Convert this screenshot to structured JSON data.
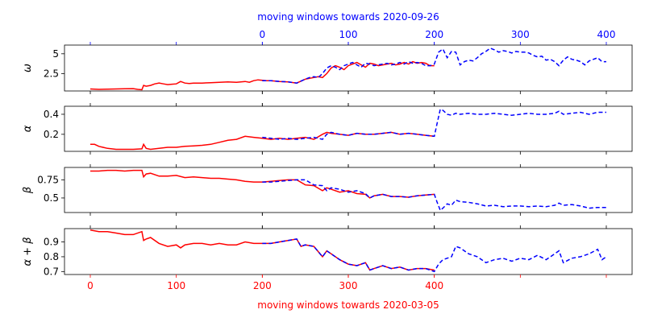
{
  "figure": {
    "top_axis_label": "moving windows towards 2020-09-26",
    "bottom_axis_label": "moving windows towards 2020-03-05",
    "top_axis_color": "#0000ff",
    "bottom_axis_color": "#ff0000"
  },
  "chart_data": {
    "type": "line",
    "shared_axes": {
      "bottom": {
        "label": "moving windows towards 2020-03-05",
        "range": [
          -30,
          630
        ],
        "ticks": [
          0,
          100,
          200,
          300,
          400
        ],
        "color": "#ff0000"
      },
      "top": {
        "label": "moving windows towards 2020-09-26",
        "range": [
          -230,
          430
        ],
        "ticks": [
          0,
          100,
          200,
          300,
          400
        ],
        "color": "#0000ff",
        "x_offset_vs_bottom": 200
      }
    },
    "panels": [
      {
        "id": "omega",
        "ylabel": "ω",
        "ylim": [
          0.3,
          6.1
        ],
        "yticks": [
          2.5,
          5.0
        ],
        "series": [
          {
            "axis": "bottom",
            "color": "#ff0000",
            "style": "solid",
            "x": [
              0,
              10,
              20,
              30,
              40,
              50,
              55,
              60,
              62,
              65,
              70,
              75,
              80,
              85,
              90,
              95,
              100,
              105,
              110,
              115,
              120,
              130,
              140,
              150,
              160,
              170,
              180,
              185,
              190,
              195,
              200,
              205,
              210,
              220,
              230,
              240,
              250,
              260,
              265,
              270,
              275,
              280,
              285,
              290,
              295,
              300,
              305,
              310,
              315,
              320,
              325,
              330,
              335,
              340,
              345,
              350,
              355,
              360,
              365,
              370,
              375,
              380,
              385,
              390,
              395,
              400
            ],
            "y": [
              0.55,
              0.5,
              0.52,
              0.55,
              0.58,
              0.6,
              0.5,
              0.45,
              1.0,
              0.9,
              1.0,
              1.2,
              1.3,
              1.2,
              1.1,
              1.15,
              1.2,
              1.5,
              1.3,
              1.25,
              1.3,
              1.3,
              1.35,
              1.4,
              1.45,
              1.4,
              1.5,
              1.4,
              1.6,
              1.7,
              1.65,
              1.6,
              1.6,
              1.5,
              1.45,
              1.3,
              1.8,
              2.0,
              2.1,
              2.0,
              2.5,
              3.2,
              3.5,
              3.3,
              3.0,
              3.5,
              3.7,
              3.9,
              3.6,
              3.3,
              3.8,
              3.7,
              3.5,
              3.6,
              3.7,
              3.8,
              3.6,
              3.7,
              3.9,
              3.7,
              4.0,
              3.8,
              3.9,
              3.8,
              3.5,
              3.5
            ]
          },
          {
            "axis": "top",
            "color": "#0000ff",
            "style": "dashed",
            "x": [
              0,
              10,
              20,
              30,
              40,
              50,
              55,
              60,
              65,
              70,
              75,
              80,
              85,
              90,
              95,
              100,
              105,
              110,
              115,
              120,
              125,
              130,
              135,
              140,
              145,
              150,
              155,
              160,
              165,
              170,
              175,
              180,
              185,
              190,
              195,
              200,
              205,
              210,
              215,
              220,
              225,
              230,
              235,
              240,
              245,
              250,
              255,
              260,
              265,
              270,
              275,
              280,
              285,
              290,
              295,
              300,
              305,
              310,
              315,
              320,
              325,
              330,
              335,
              340,
              345,
              350,
              355,
              360,
              365,
              370,
              375,
              380,
              385,
              390,
              395,
              400
            ],
            "y": [
              1.6,
              1.6,
              1.5,
              1.45,
              1.3,
              1.8,
              2.0,
              2.1,
              2.0,
              2.5,
              3.2,
              3.5,
              3.3,
              3.0,
              3.5,
              3.7,
              3.9,
              3.6,
              3.3,
              3.8,
              3.7,
              3.5,
              3.6,
              3.7,
              3.8,
              3.6,
              3.7,
              3.9,
              3.7,
              4.0,
              3.8,
              3.9,
              3.8,
              3.5,
              3.5,
              3.7,
              5.2,
              5.6,
              4.5,
              5.3,
              5.2,
              3.6,
              4.0,
              4.2,
              4.1,
              4.5,
              5.0,
              5.3,
              5.7,
              5.5,
              5.2,
              5.4,
              5.3,
              5.1,
              5.3,
              5.2,
              5.2,
              5.1,
              4.8,
              4.6,
              4.7,
              4.2,
              4.3,
              4.0,
              3.5,
              4.2,
              4.6,
              4.3,
              4.2,
              4.0,
              3.6,
              4.1,
              4.3,
              4.5,
              4.0,
              4.0
            ]
          }
        ]
      },
      {
        "id": "alpha",
        "ylabel": "α",
        "ylim": [
          0.03,
          0.48
        ],
        "yticks": [
          0.2,
          0.4
        ],
        "series": [
          {
            "axis": "bottom",
            "color": "#ff0000",
            "style": "solid",
            "x": [
              0,
              5,
              10,
              20,
              30,
              40,
              50,
              60,
              62,
              65,
              70,
              80,
              90,
              100,
              110,
              120,
              130,
              140,
              150,
              160,
              170,
              180,
              190,
              200,
              210,
              220,
              230,
              240,
              250,
              260,
              270,
              275,
              280,
              290,
              300,
              310,
              320,
              330,
              340,
              350,
              360,
              370,
              380,
              390,
              400
            ],
            "y": [
              0.1,
              0.1,
              0.08,
              0.06,
              0.05,
              0.05,
              0.05,
              0.055,
              0.1,
              0.06,
              0.05,
              0.06,
              0.07,
              0.07,
              0.08,
              0.085,
              0.09,
              0.1,
              0.12,
              0.14,
              0.15,
              0.18,
              0.17,
              0.16,
              0.15,
              0.16,
              0.15,
              0.16,
              0.17,
              0.15,
              0.2,
              0.22,
              0.21,
              0.2,
              0.19,
              0.21,
              0.2,
              0.2,
              0.21,
              0.22,
              0.2,
              0.21,
              0.2,
              0.19,
              0.18
            ]
          },
          {
            "axis": "top",
            "color": "#0000ff",
            "style": "dashed",
            "x": [
              0,
              10,
              20,
              30,
              40,
              50,
              60,
              70,
              75,
              80,
              90,
              100,
              110,
              120,
              130,
              140,
              150,
              160,
              170,
              180,
              190,
              200,
              203,
              207,
              210,
              215,
              220,
              225,
              230,
              240,
              250,
              260,
              270,
              280,
              290,
              300,
              310,
              320,
              330,
              340,
              345,
              350,
              360,
              370,
              380,
              390,
              400
            ],
            "y": [
              0.17,
              0.16,
              0.15,
              0.16,
              0.15,
              0.16,
              0.17,
              0.15,
              0.2,
              0.22,
              0.2,
              0.19,
              0.21,
              0.2,
              0.2,
              0.21,
              0.22,
              0.2,
              0.21,
              0.2,
              0.19,
              0.18,
              0.3,
              0.45,
              0.44,
              0.4,
              0.39,
              0.41,
              0.4,
              0.41,
              0.4,
              0.4,
              0.41,
              0.4,
              0.39,
              0.4,
              0.41,
              0.4,
              0.4,
              0.41,
              0.43,
              0.4,
              0.41,
              0.42,
              0.4,
              0.42,
              0.42
            ]
          }
        ]
      },
      {
        "id": "beta",
        "ylabel": "β",
        "ylim": [
          0.3,
          0.92
        ],
        "yticks": [
          0.5,
          0.75
        ],
        "series": [
          {
            "axis": "bottom",
            "color": "#ff0000",
            "style": "solid",
            "x": [
              0,
              10,
              20,
              30,
              40,
              50,
              60,
              62,
              65,
              70,
              80,
              90,
              100,
              110,
              120,
              130,
              140,
              150,
              160,
              170,
              180,
              190,
              200,
              210,
              220,
              230,
              240,
              250,
              260,
              270,
              275,
              280,
              290,
              300,
              310,
              320,
              325,
              330,
              340,
              350,
              360,
              370,
              380,
              390,
              400
            ],
            "y": [
              0.87,
              0.87,
              0.88,
              0.88,
              0.87,
              0.88,
              0.88,
              0.79,
              0.83,
              0.84,
              0.8,
              0.8,
              0.81,
              0.78,
              0.79,
              0.78,
              0.77,
              0.77,
              0.76,
              0.75,
              0.73,
              0.72,
              0.72,
              0.73,
              0.74,
              0.75,
              0.75,
              0.68,
              0.67,
              0.6,
              0.64,
              0.62,
              0.58,
              0.6,
              0.56,
              0.55,
              0.5,
              0.53,
              0.55,
              0.52,
              0.52,
              0.51,
              0.53,
              0.54,
              0.55
            ]
          },
          {
            "axis": "top",
            "color": "#0000ff",
            "style": "dashed",
            "x": [
              0,
              10,
              20,
              30,
              40,
              50,
              60,
              70,
              75,
              80,
              90,
              100,
              110,
              120,
              125,
              130,
              140,
              150,
              160,
              170,
              180,
              190,
              200,
              203,
              207,
              210,
              215,
              220,
              225,
              230,
              240,
              250,
              260,
              270,
              280,
              290,
              300,
              310,
              320,
              330,
              340,
              345,
              350,
              360,
              370,
              380,
              390,
              400
            ],
            "y": [
              0.72,
              0.72,
              0.73,
              0.74,
              0.75,
              0.75,
              0.68,
              0.67,
              0.6,
              0.64,
              0.62,
              0.58,
              0.6,
              0.56,
              0.5,
              0.53,
              0.55,
              0.52,
              0.52,
              0.51,
              0.53,
              0.54,
              0.55,
              0.45,
              0.33,
              0.36,
              0.42,
              0.4,
              0.47,
              0.45,
              0.44,
              0.42,
              0.39,
              0.4,
              0.38,
              0.39,
              0.39,
              0.38,
              0.39,
              0.38,
              0.4,
              0.43,
              0.4,
              0.41,
              0.39,
              0.36,
              0.37,
              0.37
            ]
          }
        ]
      },
      {
        "id": "alpha-plus-beta",
        "ylabel": "α + β",
        "ylim": [
          0.68,
          0.99
        ],
        "yticks": [
          0.7,
          0.8,
          0.9
        ],
        "series": [
          {
            "axis": "bottom",
            "color": "#ff0000",
            "style": "solid",
            "x": [
              0,
              10,
              20,
              30,
              40,
              50,
              60,
              62,
              65,
              70,
              80,
              90,
              100,
              105,
              110,
              120,
              130,
              140,
              150,
              160,
              170,
              180,
              190,
              200,
              210,
              220,
              230,
              240,
              245,
              250,
              260,
              270,
              275,
              280,
              290,
              300,
              310,
              320,
              325,
              330,
              340,
              350,
              360,
              370,
              380,
              390,
              400
            ],
            "y": [
              0.98,
              0.97,
              0.97,
              0.96,
              0.95,
              0.95,
              0.97,
              0.91,
              0.92,
              0.93,
              0.89,
              0.87,
              0.88,
              0.86,
              0.88,
              0.89,
              0.89,
              0.88,
              0.89,
              0.88,
              0.88,
              0.9,
              0.89,
              0.89,
              0.89,
              0.9,
              0.91,
              0.92,
              0.87,
              0.88,
              0.87,
              0.8,
              0.84,
              0.82,
              0.78,
              0.75,
              0.74,
              0.76,
              0.71,
              0.72,
              0.74,
              0.72,
              0.73,
              0.71,
              0.72,
              0.72,
              0.71
            ]
          },
          {
            "axis": "top",
            "color": "#0000ff",
            "style": "dashed",
            "x": [
              0,
              10,
              20,
              30,
              40,
              45,
              50,
              60,
              70,
              75,
              80,
              90,
              100,
              110,
              120,
              125,
              130,
              140,
              150,
              160,
              170,
              180,
              190,
              200,
              205,
              210,
              220,
              225,
              230,
              240,
              250,
              260,
              270,
              280,
              290,
              300,
              310,
              320,
              330,
              340,
              345,
              350,
              360,
              370,
              380,
              390,
              395,
              400
            ],
            "y": [
              0.89,
              0.89,
              0.9,
              0.91,
              0.92,
              0.87,
              0.88,
              0.87,
              0.8,
              0.84,
              0.82,
              0.78,
              0.75,
              0.74,
              0.76,
              0.71,
              0.72,
              0.74,
              0.72,
              0.73,
              0.71,
              0.72,
              0.72,
              0.7,
              0.75,
              0.78,
              0.8,
              0.87,
              0.86,
              0.82,
              0.8,
              0.76,
              0.78,
              0.79,
              0.77,
              0.79,
              0.78,
              0.81,
              0.78,
              0.82,
              0.84,
              0.76,
              0.79,
              0.8,
              0.82,
              0.85,
              0.78,
              0.8
            ]
          }
        ]
      }
    ]
  }
}
